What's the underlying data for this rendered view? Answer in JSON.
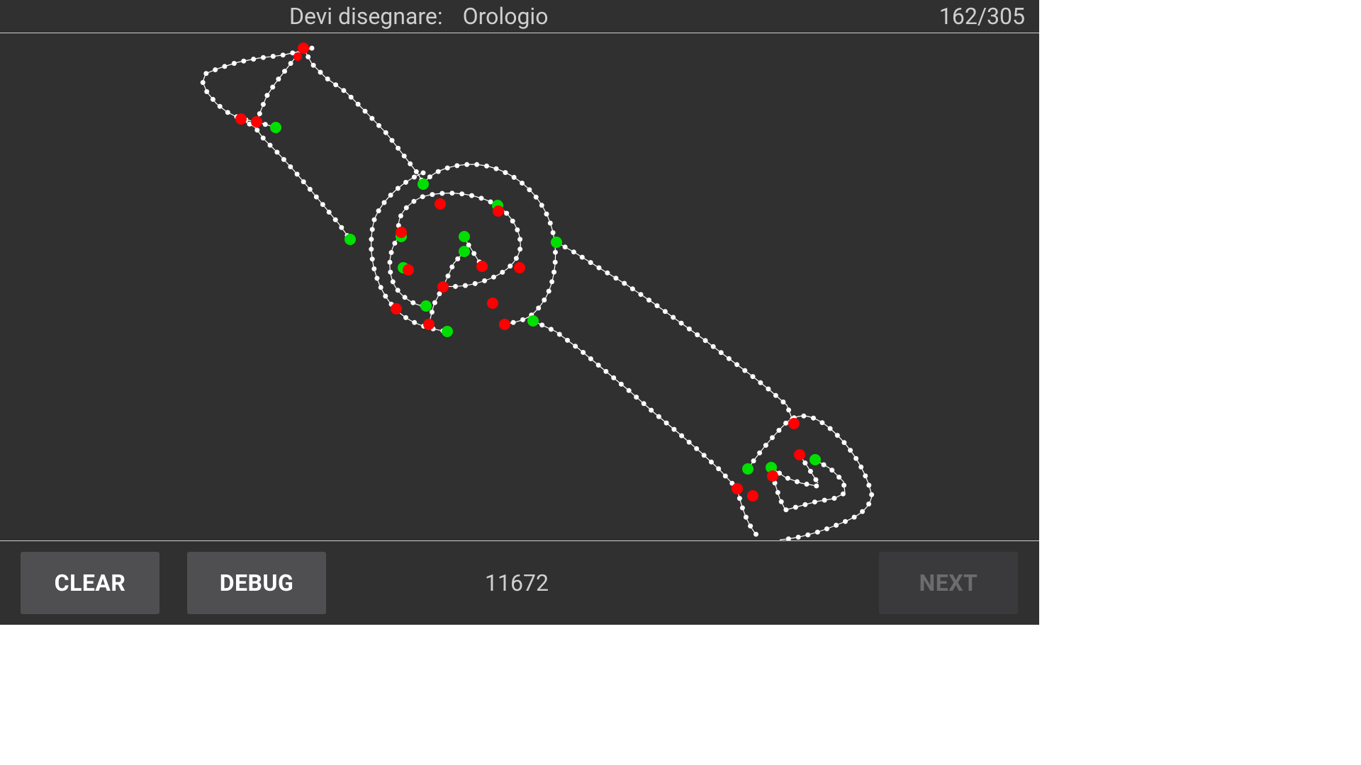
{
  "header": {
    "prompt_label": "Devi disegnare:",
    "prompt_word": "Orologio",
    "progress": "162/305"
  },
  "footer": {
    "clear_label": "CLEAR",
    "debug_label": "DEBUG",
    "score": "11672",
    "next_label": "NEXT"
  },
  "colors": {
    "background": "#303030",
    "stroke": "#ffffff",
    "stroke_start": "#00ff00",
    "stroke_end": "#ff0000",
    "button": "#4f4f51",
    "button_disabled": "#3a3a3c"
  }
}
